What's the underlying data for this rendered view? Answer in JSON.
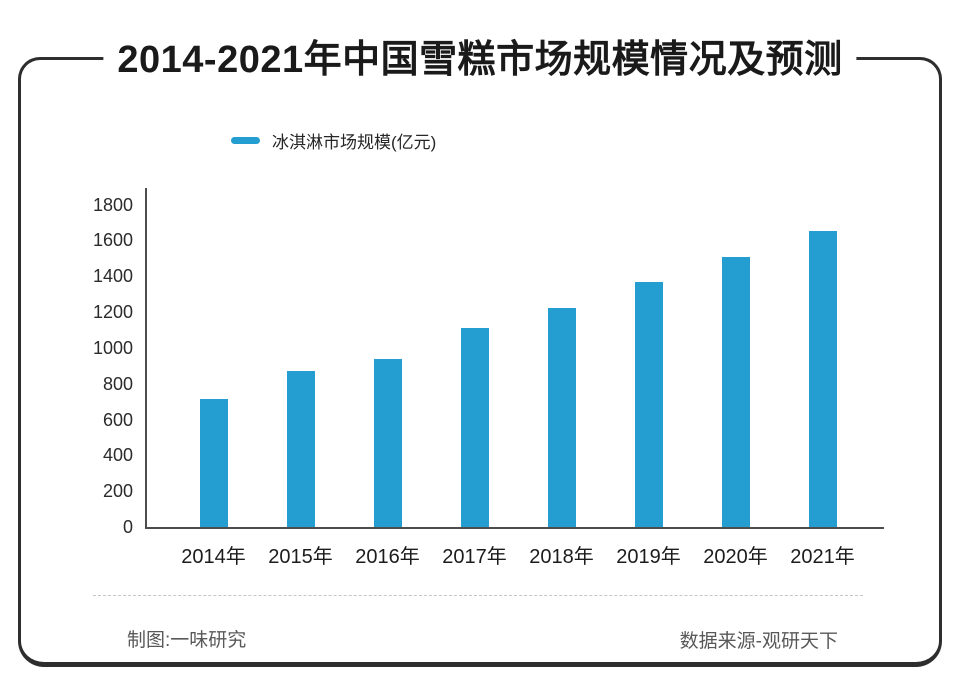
{
  "title": "2014-2021年中国雪糕市场规模情况及预测",
  "legend": {
    "label": "冰淇淋市场规模(亿元)"
  },
  "footer": {
    "left": "制图:一味研究",
    "right": "数据来源-观研天下"
  },
  "colors": {
    "bar": "#249dd0",
    "axis": "#4d4d4d",
    "frame": "#2e2e2e",
    "footer_text": "#595959"
  },
  "chart_data": {
    "type": "bar",
    "title": "2014-2021年中国雪糕市场规模情况及预测",
    "series_name": "冰淇淋市场规模(亿元)",
    "categories": [
      "2014年",
      "2015年",
      "2016年",
      "2017年",
      "2018年",
      "2019年",
      "2020年",
      "2021年"
    ],
    "values": [
      715,
      870,
      940,
      1110,
      1220,
      1370,
      1510,
      1650
    ],
    "unit": "亿元",
    "xlabel": "",
    "ylabel": "",
    "ylim": [
      0,
      1800
    ],
    "yticks": [
      0,
      200,
      400,
      600,
      800,
      1000,
      1200,
      1400,
      1600,
      1800
    ],
    "grid": false,
    "legend_position": "top-left",
    "bar_color": "#249dd0"
  }
}
